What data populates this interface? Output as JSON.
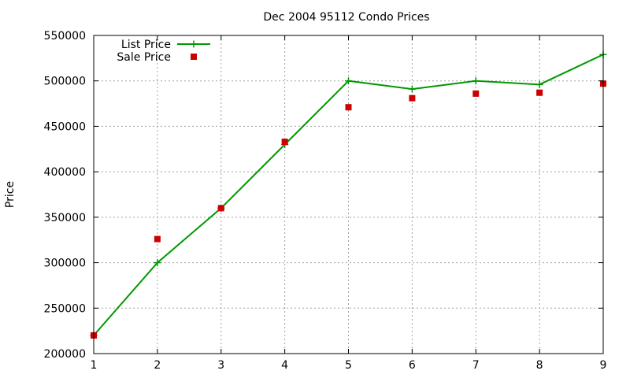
{
  "chart_data": {
    "type": "line",
    "title": "Dec 2004 95112 Condo Prices",
    "xlabel": "",
    "ylabel": "Price",
    "x": [
      1,
      2,
      3,
      4,
      5,
      6,
      7,
      8,
      9
    ],
    "xlim": [
      1,
      9
    ],
    "ylim": [
      200000,
      550000
    ],
    "x_ticks": [
      "1",
      "2",
      "3",
      "4",
      "5",
      "6",
      "7",
      "8",
      "9"
    ],
    "y_ticks": [
      "200000",
      "250000",
      "300000",
      "350000",
      "400000",
      "450000",
      "500000",
      "550000"
    ],
    "grid": true,
    "legend_position": "top-left",
    "series": [
      {
        "name": "List Price",
        "style": "line+points",
        "marker": "plus",
        "color": "#009900",
        "values": [
          220000,
          300000,
          360000,
          430000,
          500000,
          491000,
          500000,
          496000,
          529000
        ]
      },
      {
        "name": "Sale Price",
        "style": "points",
        "marker": "square",
        "color": "#cc0000",
        "values": [
          220000,
          326000,
          360000,
          433000,
          471000,
          481000,
          486000,
          487000,
          497000
        ]
      }
    ]
  }
}
